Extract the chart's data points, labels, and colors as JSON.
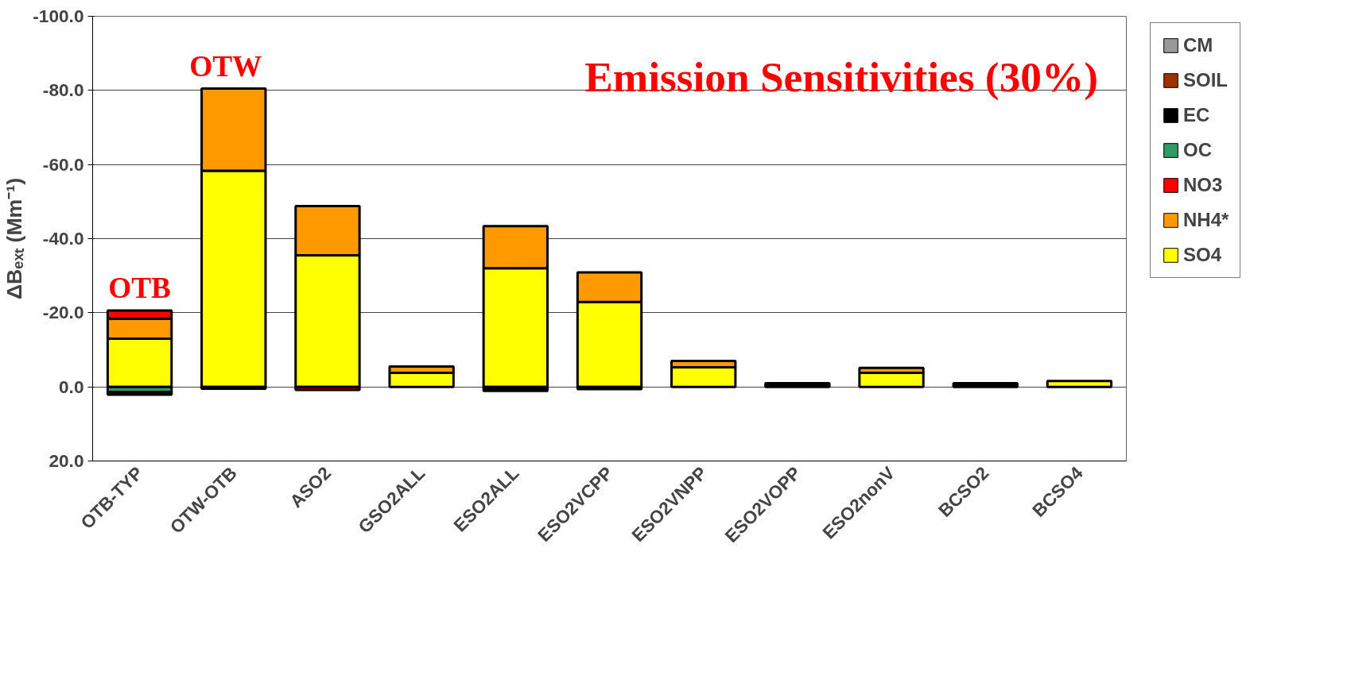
{
  "chart_data": {
    "type": "bar",
    "stacked": true,
    "title": "Emission Sensitivities (30%)",
    "ylabel": "ΔBₑₓₜ (Mm⁻¹)",
    "categories": [
      "OTB-TYP",
      "OTW-OTB",
      "ASO2",
      "GSO2ALL",
      "ESO2ALL",
      "ESO2VCPP",
      "ESO2VNPP",
      "ESO2VOPP",
      "ESO2nonV",
      "BCSO2",
      "BCSO4"
    ],
    "series": [
      {
        "name": "SO4",
        "color": "#ffff00",
        "values": [
          -13.0,
          -58.3,
          -35.5,
          -3.8,
          -32.0,
          -22.9,
          -5.3,
          null,
          -3.8,
          null,
          -1.6
        ]
      },
      {
        "name": "NH4*",
        "color": "#ff9900",
        "values": [
          -5.4,
          -22.2,
          -13.3,
          -1.7,
          -11.4,
          -8.0,
          -1.7,
          null,
          -1.3,
          null,
          null
        ]
      },
      {
        "name": "NO3",
        "color": "#ff0000",
        "values": [
          -2.2,
          null,
          0.8,
          null,
          null,
          null,
          null,
          null,
          null,
          null,
          null
        ]
      },
      {
        "name": "OC",
        "color": "#339966",
        "values": [
          1.4,
          null,
          null,
          null,
          null,
          null,
          null,
          null,
          null,
          null,
          null
        ]
      },
      {
        "name": "EC",
        "color": "#000000",
        "values": [
          0.7,
          0.5,
          null,
          null,
          1.1,
          0.6,
          null,
          -1.0,
          null,
          -1.0,
          null
        ]
      },
      {
        "name": "SOIL",
        "color": "#993300",
        "values": [
          null,
          null,
          null,
          null,
          null,
          null,
          null,
          null,
          null,
          null,
          null
        ]
      },
      {
        "name": "CM",
        "color": "#999999",
        "values": [
          null,
          null,
          null,
          null,
          null,
          null,
          null,
          null,
          null,
          null,
          null
        ]
      }
    ],
    "ylim": [
      20,
      -100
    ],
    "yticks": [
      {
        "value": 20,
        "label": "20.0"
      },
      {
        "value": 0,
        "label": "0.0"
      },
      {
        "value": -20,
        "label": "-20.0"
      },
      {
        "value": -40,
        "label": "-40.0"
      },
      {
        "value": -60,
        "label": "-60.0"
      },
      {
        "value": -80,
        "label": "-80.0"
      },
      {
        "value": -100,
        "label": "-100.0"
      }
    ],
    "grid": "y",
    "legend": "right",
    "annotations": [
      "OTB",
      "OTW"
    ]
  }
}
